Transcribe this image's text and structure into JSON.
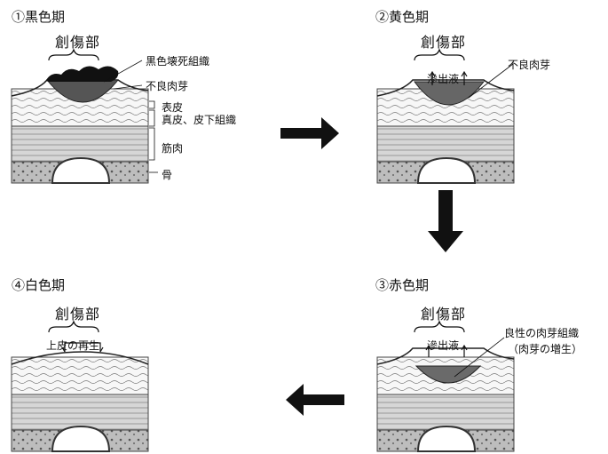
{
  "stages": [
    {
      "id": "black",
      "title": "①黒色期"
    },
    {
      "id": "yellow",
      "title": "②黄色期"
    },
    {
      "id": "red",
      "title": "③赤色期"
    },
    {
      "id": "white",
      "title": "④白色期"
    }
  ],
  "wound_label": "創傷部",
  "labels": {
    "necrotic": "黒色壊死組織",
    "unhealthy_granulation": "不良肉芽",
    "epidermis": "表皮",
    "dermis": "真皮、皮下組織",
    "muscle": "筋肉",
    "bone": "骨",
    "exudate": "滲出液",
    "healthy_granulation_1": "良性の肉芽組織",
    "healthy_granulation_2": "（肉芽の増生）",
    "re_epithelialization": "上皮の再生"
  },
  "arrows": [
    "right",
    "down",
    "left"
  ]
}
